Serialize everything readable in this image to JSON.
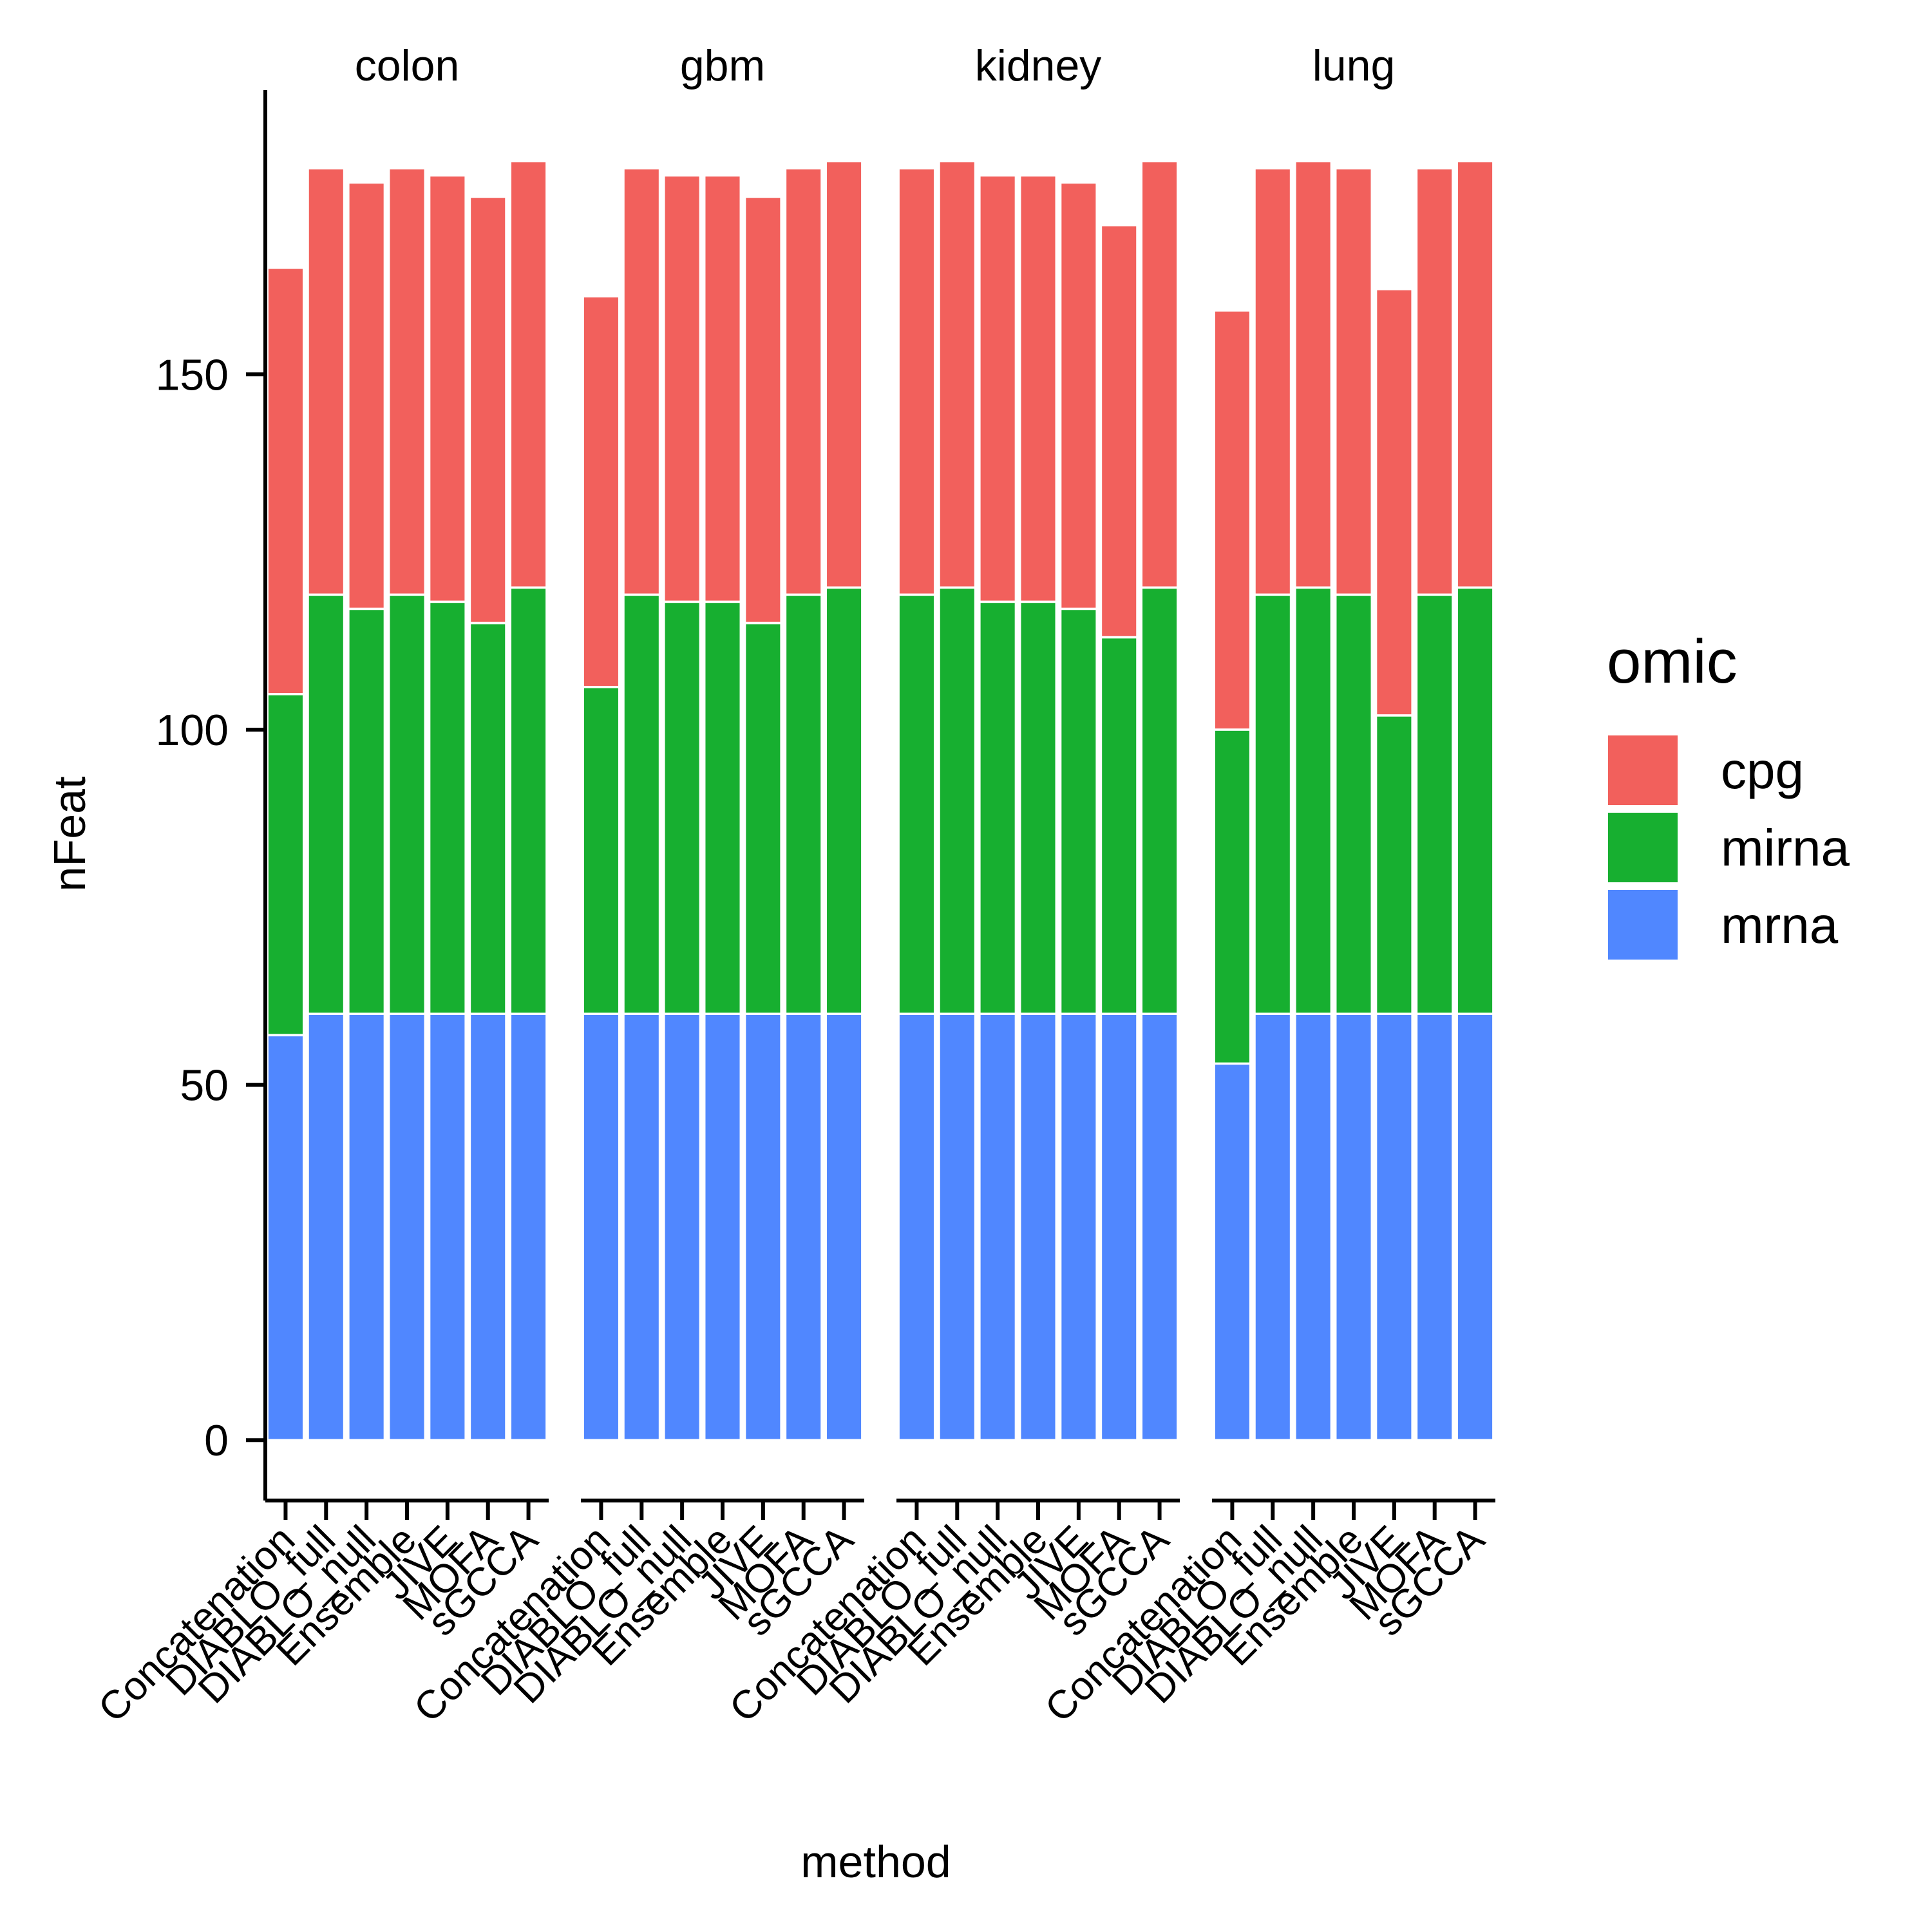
{
  "chart_data": {
    "type": "bar",
    "stacked": true,
    "xlabel": "method",
    "ylabel": "nFeat",
    "ylim": [
      -8.5,
      190
    ],
    "yticks": [
      0,
      50,
      100,
      150
    ],
    "legend": {
      "title": "omic",
      "position": "right",
      "entries": [
        "cpg",
        "mirna",
        "mrna"
      ]
    },
    "colors": {
      "cpg": "#F2605C",
      "mirna": "#17AF30",
      "mrna": "#5087FF"
    },
    "categories": [
      "Concatenation",
      "DIABLO_full",
      "DIABLO_null",
      "Ensemble",
      "JIVE",
      "MOFA",
      "sGCCA"
    ],
    "facets": [
      {
        "name": "colon",
        "series": [
          {
            "name": "mrna",
            "values": [
              57,
              60,
              60,
              60,
              60,
              60,
              60
            ]
          },
          {
            "name": "mirna",
            "values": [
              48,
              59,
              57,
              59,
              58,
              55,
              60
            ]
          },
          {
            "name": "cpg",
            "values": [
              60,
              60,
              60,
              60,
              60,
              60,
              60
            ]
          }
        ]
      },
      {
        "name": "gbm",
        "series": [
          {
            "name": "mrna",
            "values": [
              60,
              60,
              60,
              60,
              60,
              60,
              60
            ]
          },
          {
            "name": "mirna",
            "values": [
              46,
              59,
              58,
              58,
              55,
              59,
              60
            ]
          },
          {
            "name": "cpg",
            "values": [
              55,
              60,
              60,
              60,
              60,
              60,
              60
            ]
          }
        ]
      },
      {
        "name": "kidney",
        "series": [
          {
            "name": "mrna",
            "values": [
              60,
              60,
              60,
              60,
              60,
              60,
              60
            ]
          },
          {
            "name": "mirna",
            "values": [
              59,
              60,
              58,
              58,
              57,
              53,
              60
            ]
          },
          {
            "name": "cpg",
            "values": [
              60,
              60,
              60,
              60,
              60,
              58,
              60
            ]
          }
        ]
      },
      {
        "name": "lung",
        "series": [
          {
            "name": "mrna",
            "values": [
              53,
              60,
              60,
              60,
              60,
              60,
              60
            ]
          },
          {
            "name": "mirna",
            "values": [
              47,
              59,
              60,
              59,
              42,
              59,
              60
            ]
          },
          {
            "name": "cpg",
            "values": [
              59,
              60,
              60,
              60,
              60,
              60,
              60
            ]
          }
        ]
      }
    ]
  }
}
